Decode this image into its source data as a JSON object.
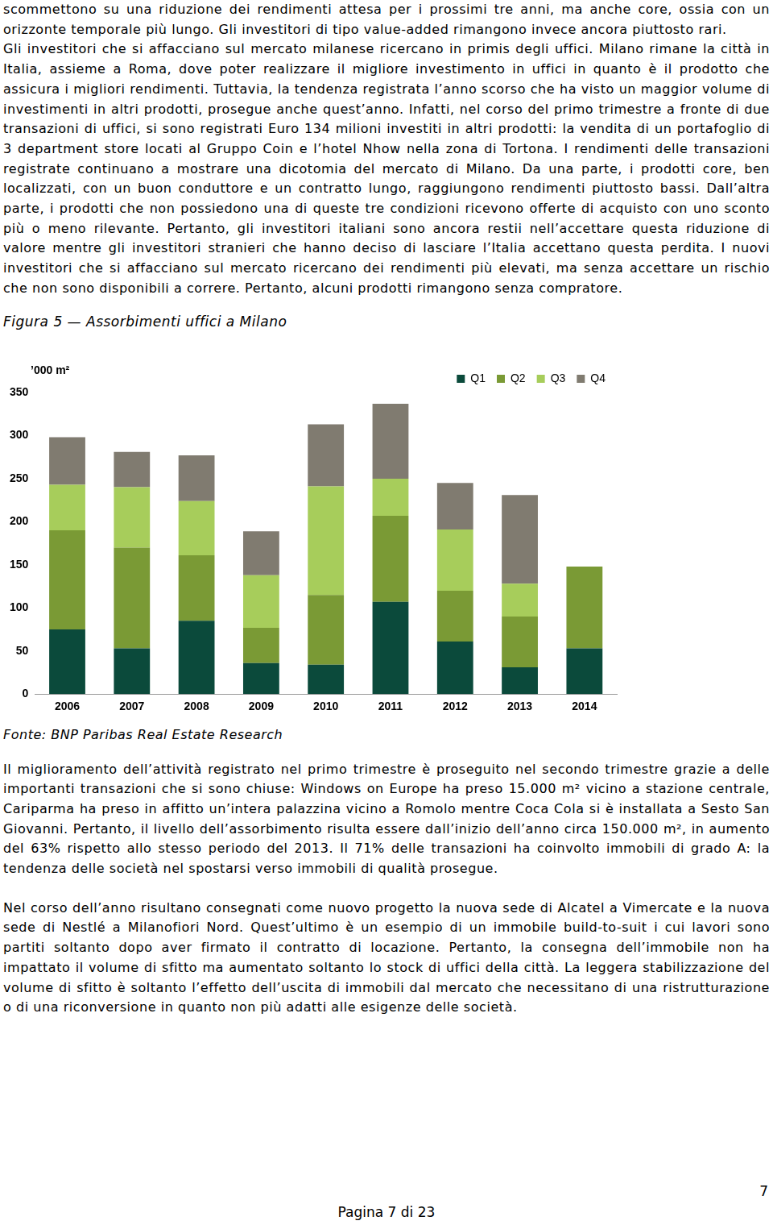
{
  "paragraphs_before": [
    "scommettono su una riduzione dei rendimenti attesa per i prossimi tre anni, ma anche core, ossia con un orizzonte temporale più lungo. Gli investitori di tipo value-added rimangono invece ancora piuttosto rari.",
    "Gli investitori che si affacciano sul mercato milanese ricercano in primis degli uffici. Milano rimane la città in Italia, assieme a Roma, dove poter realizzare il migliore investimento in uffici in quanto è il prodotto che assicura i migliori rendimenti. Tuttavia, la tendenza registrata l’anno scorso che ha visto un maggior volume di investimenti in altri prodotti, prosegue anche quest’anno. Infatti, nel corso del primo trimestre a fronte di due transazioni di uffici, si sono registrati Euro 134 milioni investiti in altri prodotti: la vendita di un portafoglio di 3 department store locati al Gruppo Coin e l’hotel Nhow nella zona di Tortona. I rendimenti delle transazioni registrate continuano a mostrare una dicotomia del mercato di Milano. Da una parte, i prodotti core, ben localizzati, con un buon conduttore e un contratto lungo, raggiungono rendimenti piuttosto bassi. Dall’altra parte, i prodotti che non possiedono una di queste tre condizioni ricevono offerte di acquisto con uno sconto più o meno rilevante. Pertanto, gli investitori italiani sono ancora restii nell’accettare questa riduzione di valore mentre gli investitori stranieri che hanno deciso di lasciare l’Italia accettano questa perdita. I nuovi investitori che si affacciano sul mercato ricercano dei rendimenti più elevati, ma senza accettare un rischio che non sono disponibili a correre. Pertanto, alcuni prodotti rimangono senza compratore."
  ],
  "figure_caption": "Figura 5 — Assorbimenti uffici a Milano",
  "chart_data": {
    "type": "bar",
    "stacked": true,
    "y_label": "’000 m²",
    "categories": [
      "2006",
      "2007",
      "2008",
      "2009",
      "2010",
      "2011",
      "2012",
      "2013",
      "2014"
    ],
    "series": [
      {
        "name": "Q1",
        "color": "#0b4a3b",
        "values": [
          75,
          53,
          85,
          36,
          34,
          107,
          61,
          31,
          53
        ]
      },
      {
        "name": "Q2",
        "color": "#7a9a35",
        "values": [
          115,
          117,
          76,
          41,
          81,
          100,
          59,
          59,
          95
        ]
      },
      {
        "name": "Q3",
        "color": "#a7cd5b",
        "values": [
          53,
          70,
          63,
          61,
          126,
          43,
          71,
          38,
          null
        ]
      },
      {
        "name": "Q4",
        "color": "#807b70",
        "values": [
          55,
          41,
          53,
          51,
          72,
          87,
          54,
          103,
          null
        ]
      }
    ],
    "ylim": [
      0,
      350
    ],
    "yticks": [
      0,
      50,
      100,
      150,
      200,
      250,
      300,
      350
    ],
    "grid": false,
    "legend": "top right"
  },
  "source": "Fonte: BNP Paribas Real Estate Research",
  "paragraphs_after": [
    "Il miglioramento dell’attività registrato nel primo trimestre è proseguito nel secondo trimestre grazie a delle importanti transazioni che si sono chiuse: Windows on Europe ha preso 15.000 m² vicino a stazione centrale, Cariparma ha preso in affitto un’intera palazzina vicino a Romolo mentre Coca Cola si è installata a Sesto San Giovanni. Pertanto, il livello dell’assorbimento risulta essere dall’inizio dell’anno circa 150.000 m², in aumento del 63% rispetto allo stesso periodo del 2013. Il 71% delle transazioni ha coinvolto immobili di grado A: la tendenza delle società nel spostarsi verso immobili di qualità prosegue.",
    "Nel corso dell’anno risultano consegnati come nuovo progetto la nuova sede di Alcatel a Vimercate e la nuova sede di Nestlé a Milanofiori Nord. Quest’ultimo è un esempio di un immobile build-to-suit i cui lavori sono partiti soltanto dopo aver firmato il contratto di locazione. Pertanto, la consegna dell’immobile non ha impattato il volume di sfitto ma aumentato soltanto lo stock di uffici della città. La leggera stabilizzazione del volume di sfitto è soltanto l’effetto dell’uscita di immobili dal mercato che necessitano di una ristrutturazione o di una riconversione in quanto non più adatti alle esigenze delle società."
  ],
  "page_number": "7",
  "footer": "Pagina 7 di 23"
}
